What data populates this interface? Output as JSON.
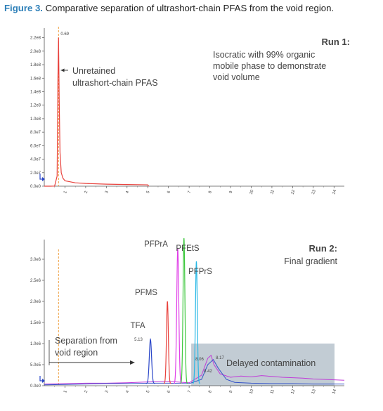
{
  "figure": {
    "label": "Figure 3.",
    "caption": "Comparative separation of ultrashort-chain PFAS from the void region."
  },
  "chart_data": [
    {
      "type": "line",
      "run_label": "Run 1:",
      "description": [
        "Isocratic with 99% organic",
        "mobile phase to demonstrate",
        "void volume"
      ],
      "xlim": [
        0,
        14.5
      ],
      "ylim": [
        0,
        230000000.0
      ],
      "x_ticks": [
        "1",
        "2",
        "3",
        "4",
        "5",
        "6",
        "7",
        "8",
        "9",
        "10",
        "11",
        "12",
        "13",
        "14"
      ],
      "y_ticks": [
        {
          "value": 0,
          "label": "0.0e0"
        },
        {
          "value": 20000000.0,
          "label": "2.0e7"
        },
        {
          "value": 40000000.0,
          "label": "4.0e7"
        },
        {
          "value": 60000000.0,
          "label": "6.0e7"
        },
        {
          "value": 80000000.0,
          "label": "8.0e7"
        },
        {
          "value": 100000000.0,
          "label": "1.0e8"
        },
        {
          "value": 120000000.0,
          "label": "1.2e8"
        },
        {
          "value": 140000000.0,
          "label": "1.4e8"
        },
        {
          "value": 160000000.0,
          "label": "1.6e8"
        },
        {
          "value": 180000000.0,
          "label": "1.8e8"
        },
        {
          "value": 200000000.0,
          "label": "2.0e8"
        },
        {
          "value": 220000000.0,
          "label": "2.2e8"
        }
      ],
      "peak_label": "0.69",
      "annotation": [
        "Unretained",
        "ultrashort-chain PFAS"
      ],
      "series": [
        {
          "color": "#e8413c",
          "x": [
            0,
            0.3,
            0.5,
            0.62,
            0.66,
            0.69,
            0.72,
            0.76,
            0.82,
            0.9,
            1.0,
            1.5,
            2,
            3,
            4,
            5,
            5.05
          ],
          "y": [
            0,
            0,
            200000.0,
            15000000.0,
            160000000.0,
            220000000.0,
            130000000.0,
            50000000.0,
            20000000.0,
            12000000.0,
            8000000.0,
            5000000.0,
            4000000.0,
            3000000.0,
            2500000.0,
            2000000.0,
            0
          ]
        }
      ]
    },
    {
      "type": "line",
      "run_label": "Run 2:",
      "description": [
        "Final gradient"
      ],
      "xlim": [
        0,
        14.5
      ],
      "ylim": [
        0,
        3400000.0
      ],
      "x_ticks": [
        "1",
        "2",
        "3",
        "4",
        "5",
        "6",
        "7",
        "8",
        "9",
        "10",
        "11",
        "12",
        "13",
        "14"
      ],
      "y_ticks": [
        {
          "value": 0,
          "label": "0.0e0"
        },
        {
          "value": 500000.0,
          "label": "5.0e5"
        },
        {
          "value": 1000000.0,
          "label": "1.0e6"
        },
        {
          "value": 1500000.0,
          "label": "1.5e6"
        },
        {
          "value": 2000000.0,
          "label": "2.0e6"
        },
        {
          "value": 2500000.0,
          "label": "2.5e6"
        },
        {
          "value": 3000000.0,
          "label": "3.0e6"
        }
      ],
      "shaded_region": {
        "x": [
          7.1,
          14.5
        ],
        "label": "Delayed contamination"
      },
      "void_marker_x": 0.69,
      "annotation": [
        "Separation from",
        "void region"
      ],
      "peak_numbers": [
        {
          "text": "5.13",
          "x": 5.13,
          "y": 1050000.0
        },
        {
          "text": "8.06",
          "x": 8.06,
          "y": 610000.0
        },
        {
          "text": "8.17",
          "x": 8.17,
          "y": 700000.0
        },
        {
          "text": "8.42",
          "x": 8.42,
          "y": 440000.0
        }
      ],
      "series": [
        {
          "name": "TFA",
          "color": "#2a46c8",
          "apex": [
            5.13,
            1050000.0
          ],
          "width": 0.055
        },
        {
          "name": "PFMS",
          "color": "#e8413c",
          "apex": [
            5.95,
            1950000.0
          ],
          "width": 0.045
        },
        {
          "name": "PFPrA",
          "color": "#e040e8",
          "apex": [
            6.45,
            3200000.0
          ],
          "width": 0.05
        },
        {
          "name": "PFEtS",
          "color": "#3ec83e",
          "apex": [
            6.75,
            3450000.0
          ],
          "width": 0.045
        },
        {
          "name": "PFPrS",
          "color": "#28b8e6",
          "apex": [
            7.35,
            2900000.0
          ],
          "width": 0.045
        }
      ],
      "contamination": [
        {
          "color": "#c03ad8",
          "x": [
            0,
            1,
            2,
            3,
            4,
            5,
            6,
            7,
            7.6,
            7.9,
            8.06,
            8.2,
            8.5,
            9,
            9.5,
            10,
            10.5,
            11,
            11.5,
            12,
            12.5,
            13,
            13.5,
            14,
            14.5
          ],
          "y": [
            40000.0,
            50000.0,
            60000.0,
            60000.0,
            70000.0,
            90000.0,
            100000.0,
            70000.0,
            250000.0,
            650000.0,
            720000.0,
            500000.0,
            280000.0,
            200000.0,
            230000.0,
            210000.0,
            240000.0,
            220000.0,
            200000.0,
            190000.0,
            180000.0,
            160000.0,
            150000.0,
            140000.0,
            130000.0
          ]
        },
        {
          "color": "#3352c8",
          "x": [
            0,
            1,
            2,
            3,
            4,
            5,
            6,
            7,
            7.6,
            7.9,
            8.17,
            8.4,
            8.8,
            9.2,
            10,
            11,
            12,
            13,
            14,
            14.5
          ],
          "y": [
            20000.0,
            30000.0,
            40000.0,
            50000.0,
            50000.0,
            60000.0,
            60000.0,
            50000.0,
            150000.0,
            500000.0,
            620000.0,
            420000.0,
            150000.0,
            80000.0,
            60000.0,
            50000.0,
            50000.0,
            40000.0,
            40000.0,
            40000.0
          ]
        }
      ]
    }
  ]
}
